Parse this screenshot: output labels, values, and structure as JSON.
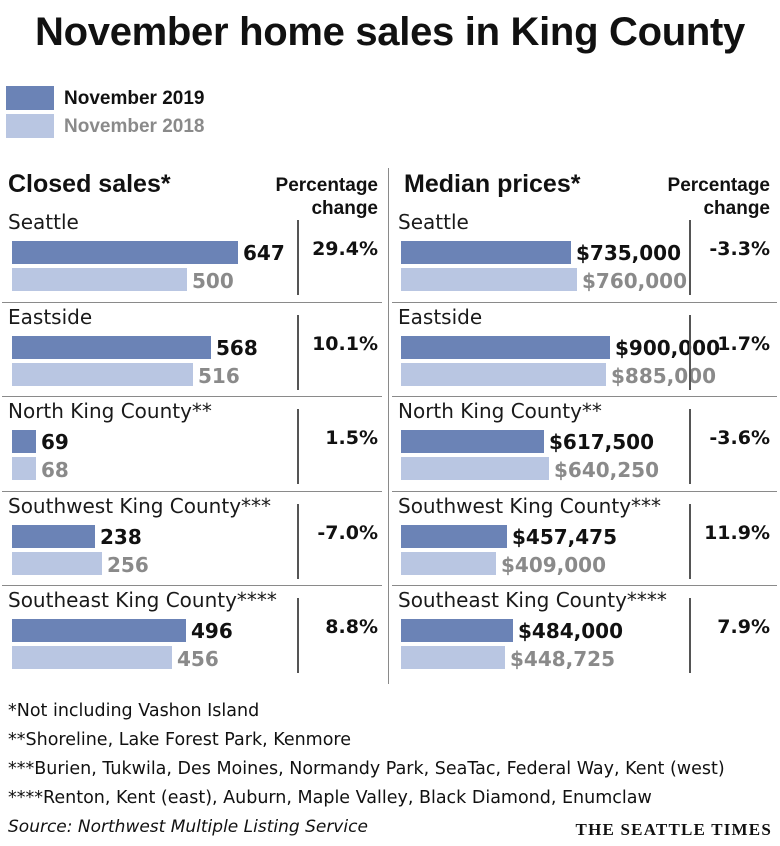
{
  "title": "November home sales in King County",
  "legend": [
    {
      "label": "November 2019",
      "color": "#6b83b6",
      "text_color": "#111111"
    },
    {
      "label": "November 2018",
      "color": "#b9c6e2",
      "text_color": "#8a8a8a"
    }
  ],
  "colors": {
    "bar_2019": "#6b83b6",
    "bar_2018": "#b9c6e2",
    "text_2018": "#8a8a8a"
  },
  "chart_data": [
    {
      "type": "bar",
      "orientation": "horizontal",
      "title": "Closed sales*",
      "pct_header": [
        "Percentage",
        "change"
      ],
      "series_names": [
        "November 2019",
        "November 2018"
      ],
      "max": 700,
      "regions": [
        {
          "name": "Seattle",
          "v2019": 647,
          "v2018": 500,
          "label2019": "647",
          "label2018": "500",
          "pct": "29.4%"
        },
        {
          "name": "Eastside",
          "v2019": 568,
          "v2018": 516,
          "label2019": "568",
          "label2018": "516",
          "pct": "10.1%"
        },
        {
          "name": "North King County**",
          "v2019": 69,
          "v2018": 68,
          "label2019": "69",
          "label2018": "68",
          "pct": "1.5%"
        },
        {
          "name": "Southwest King County***",
          "v2019": 238,
          "v2018": 256,
          "label2019": "238",
          "label2018": "256",
          "pct": "-7.0%"
        },
        {
          "name": "Southeast King County****",
          "v2019": 496,
          "v2018": 456,
          "label2019": "496",
          "label2018": "456",
          "pct": "8.8%"
        }
      ]
    },
    {
      "type": "bar",
      "orientation": "horizontal",
      "title": "Median prices*",
      "pct_header": [
        "Percentage",
        "change"
      ],
      "series_names": [
        "November 2019",
        "November 2018"
      ],
      "max": 1100000,
      "regions": [
        {
          "name": "Seattle",
          "v2019": 735000,
          "v2018": 760000,
          "label2019": "$735,000",
          "label2018": "$760,000",
          "pct": "-3.3%"
        },
        {
          "name": "Eastside",
          "v2019": 900000,
          "v2018": 885000,
          "label2019": "$900,000",
          "label2018": "$885,000",
          "pct": "1.7%"
        },
        {
          "name": "North King County**",
          "v2019": 617500,
          "v2018": 640250,
          "label2019": "$617,500",
          "label2018": "$640,250",
          "pct": "-3.6%"
        },
        {
          "name": "Southwest King County***",
          "v2019": 457475,
          "v2018": 409000,
          "label2019": "$457,475",
          "label2018": "$409,000",
          "pct": "11.9%"
        },
        {
          "name": "Southeast King County****",
          "v2019": 484000,
          "v2018": 448725,
          "label2019": "$484,000",
          "label2018": "$448,725",
          "pct": "7.9%"
        }
      ]
    }
  ],
  "notes": [
    "*Not including Vashon Island",
    "**Shoreline, Lake Forest Park, Kenmore",
    "***Burien, Tukwila, Des Moines, Normandy Park, SeaTac, Federal Way, Kent (west)",
    "****Renton, Kent (east), Auburn, Maple Valley, Black Diamond, Enumclaw"
  ],
  "source": "Source: Northwest Multiple Listing Service",
  "brand": "THE SEATTLE TIMES"
}
